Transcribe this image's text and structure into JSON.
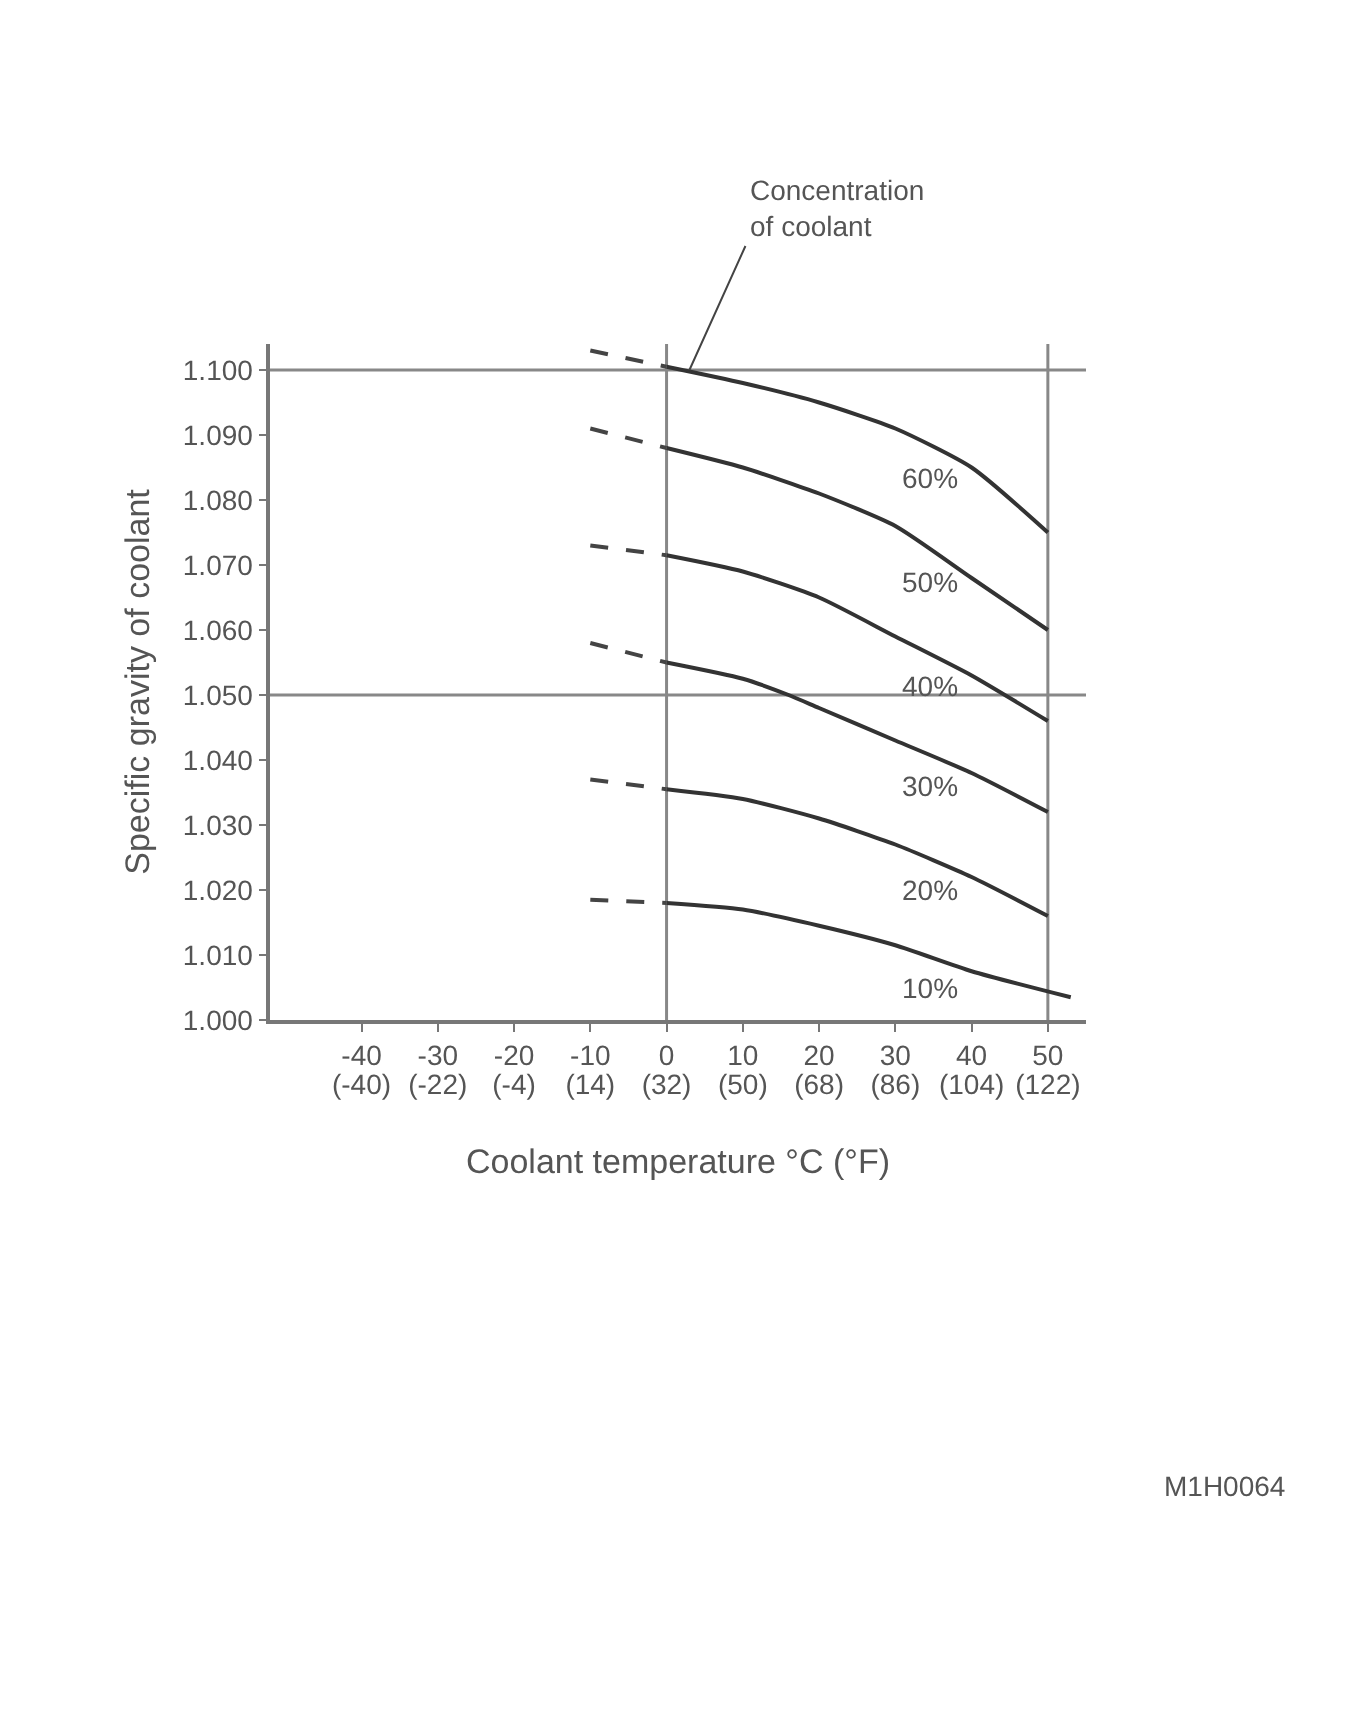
{
  "chart_data": {
    "type": "line",
    "xlabel": "Coolant temperature °C (°F)",
    "ylabel": "Specific gravity of coolant",
    "xlim": [
      -52,
      55
    ],
    "ylim": [
      1.0,
      1.104
    ],
    "xticks": [
      -40,
      -30,
      -20,
      -10,
      0,
      10,
      20,
      30,
      40,
      50
    ],
    "x2lim": [
      -61.6,
      131
    ],
    "x2ticks": [
      {
        "value": -40,
        "label": "(-40)"
      },
      {
        "value": -22,
        "label": "(-22)"
      },
      {
        "value": -4,
        "label": "(-4)"
      },
      {
        "value": 14,
        "label": "(14)"
      },
      {
        "value": 32,
        "label": "(32)"
      },
      {
        "value": 50,
        "label": "(50)"
      },
      {
        "value": 68,
        "label": "(68)"
      },
      {
        "value": 86,
        "label": "(86)"
      },
      {
        "value": 104,
        "label": "(104)"
      },
      {
        "value": 122,
        "label": "(122)"
      }
    ],
    "yticks": [
      {
        "value": 1.0,
        "label": "1.000"
      },
      {
        "value": 1.01,
        "label": "1.010"
      },
      {
        "value": 1.02,
        "label": "1.020"
      },
      {
        "value": 1.03,
        "label": "1.030"
      },
      {
        "value": 1.04,
        "label": "1.040"
      },
      {
        "value": 1.05,
        "label": "1.050"
      },
      {
        "value": 1.06,
        "label": "1.060"
      },
      {
        "value": 1.07,
        "label": "1.070"
      },
      {
        "value": 1.08,
        "label": "1.080"
      },
      {
        "value": 1.09,
        "label": "1.090"
      },
      {
        "value": 1.1,
        "label": "1.100"
      }
    ],
    "grid": false,
    "legend": false,
    "marker": "none",
    "series": [
      {
        "name": "60%",
        "color": "#333333",
        "line_style": "solid",
        "x": [
          0,
          10,
          20,
          30,
          40,
          50
        ],
        "values": [
          1.1005,
          1.098,
          1.095,
          1.091,
          1.085,
          1.075
        ]
      },
      {
        "name": "50%",
        "color": "#333333",
        "line_style": "solid",
        "x": [
          0,
          10,
          20,
          30,
          40,
          50
        ],
        "values": [
          1.088,
          1.085,
          1.081,
          1.076,
          1.068,
          1.06
        ]
      },
      {
        "name": "40%",
        "color": "#333333",
        "line_style": "solid",
        "x": [
          0,
          10,
          20,
          30,
          40,
          50
        ],
        "values": [
          1.0715,
          1.069,
          1.065,
          1.059,
          1.053,
          1.046
        ]
      },
      {
        "name": "30%",
        "color": "#333333",
        "line_style": "solid",
        "x": [
          0,
          10,
          16,
          20,
          30,
          40,
          50
        ],
        "values": [
          1.055,
          1.0525,
          1.05,
          1.048,
          1.043,
          1.038,
          1.032
        ]
      },
      {
        "name": "20%",
        "color": "#333333",
        "line_style": "solid",
        "x": [
          0,
          10,
          20,
          30,
          40,
          50
        ],
        "values": [
          1.0355,
          1.034,
          1.031,
          1.027,
          1.022,
          1.016
        ]
      },
      {
        "name": "10%",
        "color": "#333333",
        "line_style": "solid",
        "x": [
          0,
          10,
          20,
          30,
          40,
          53
        ],
        "values": [
          1.018,
          1.017,
          1.0145,
          1.0115,
          1.0075,
          1.0035
        ]
      },
      {
        "color": "#444444",
        "line_style": "dashed",
        "x": [
          -10,
          0
        ],
        "values": [
          1.103,
          1.1005
        ]
      },
      {
        "color": "#444444",
        "line_style": "dashed",
        "x": [
          -10,
          0
        ],
        "values": [
          1.091,
          1.088
        ]
      },
      {
        "color": "#444444",
        "line_style": "dashed",
        "x": [
          -10,
          0
        ],
        "values": [
          1.073,
          1.0715
        ]
      },
      {
        "color": "#444444",
        "line_style": "dashed",
        "x": [
          -10,
          0
        ],
        "values": [
          1.058,
          1.055
        ]
      },
      {
        "color": "#444444",
        "line_style": "dashed",
        "x": [
          -10,
          0
        ],
        "values": [
          1.037,
          1.0355
        ]
      },
      {
        "color": "#444444",
        "line_style": "dashed",
        "x": [
          -10,
          0
        ],
        "values": [
          1.0185,
          1.018
        ]
      }
    ],
    "ref_lines": [
      {
        "axis": "y",
        "value": 1.1,
        "color": "#888888"
      },
      {
        "axis": "y",
        "value": 1.05,
        "color": "#888888"
      },
      {
        "axis": "x",
        "value": 0,
        "color": "#888888"
      },
      {
        "axis": "x",
        "value": 50,
        "color": "#888888"
      }
    ],
    "annotations": [
      {
        "text": "Concentration\nof coolant",
        "x": 3,
        "y": 1.1
      },
      "M1H0064"
    ]
  }
}
